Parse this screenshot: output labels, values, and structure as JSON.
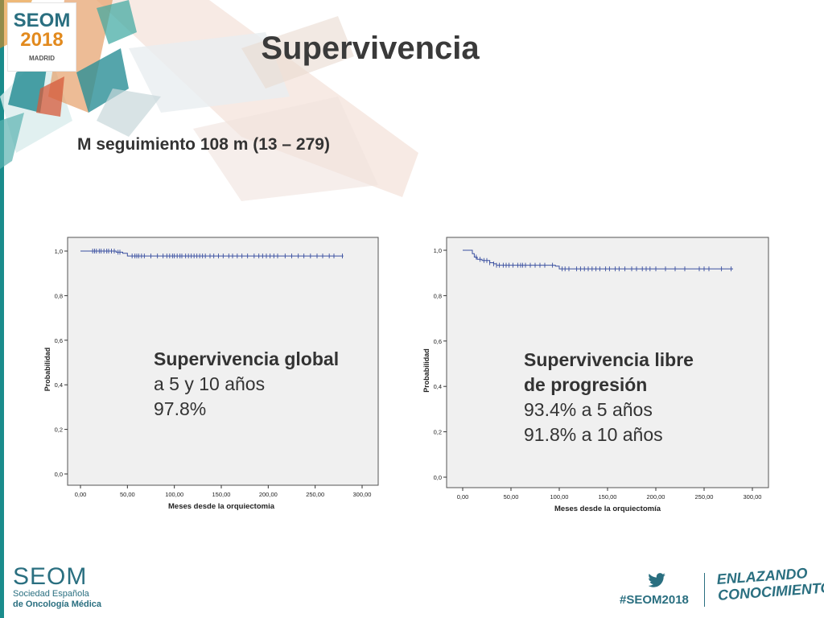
{
  "header": {
    "logo": {
      "line1": "SEOM",
      "line2": "2018",
      "city": "MADRID"
    },
    "title": "Supervivencia",
    "subtitle": "M seguimiento 108 m (13 – 279)"
  },
  "colors": {
    "accent_teal": "#2a6f80",
    "accent_orange": "#e28a1e",
    "curve": "#3a4fa0",
    "plot_bg": "#f0f0f0"
  },
  "chart_data": [
    {
      "type": "line",
      "title": "",
      "xlabel": "Meses desde la orquiectomia",
      "ylabel": "Probabilidad",
      "xlim": [
        0,
        300
      ],
      "ylim": [
        0,
        1
      ],
      "x_ticks": [
        0,
        50,
        100,
        150,
        200,
        250,
        300
      ],
      "x_tick_labels": [
        "0,00",
        "50,00",
        "100,00",
        "150,00",
        "200,00",
        "250,00",
        "300,00"
      ],
      "y_ticks": [
        0,
        0.2,
        0.4,
        0.6,
        0.8,
        1.0
      ],
      "y_tick_labels": [
        "0,0",
        "0,2",
        "0,4",
        "0,6",
        "0,8",
        "1,0"
      ],
      "series": [
        {
          "step_x": [
            0,
            38,
            45,
            50,
            280
          ],
          "step_y": [
            1.0,
            0.995,
            0.99,
            0.978,
            0.978
          ],
          "censor_x": [
            13,
            15,
            17,
            20,
            22,
            25,
            28,
            30,
            33,
            36,
            40,
            42,
            55,
            58,
            60,
            62,
            65,
            68,
            75,
            82,
            88,
            92,
            95,
            98,
            100,
            103,
            106,
            108,
            112,
            115,
            118,
            121,
            124,
            127,
            130,
            133,
            138,
            142,
            147,
            152,
            158,
            162,
            167,
            172,
            178,
            185,
            190,
            194,
            198,
            202,
            206,
            210,
            218,
            225,
            232,
            238,
            245,
            252,
            258,
            265,
            270,
            279
          ],
          "line_start_x": 0
        }
      ],
      "annotation": {
        "heading": "Supervivencia global",
        "line1": "a 5 y 10 años",
        "line2": "97.8%"
      }
    },
    {
      "type": "line",
      "title": "",
      "xlabel": "Meses desde la orquiectomía",
      "ylabel": "Probabilidad",
      "xlim": [
        0,
        300
      ],
      "ylim": [
        0,
        1
      ],
      "x_ticks": [
        0,
        50,
        100,
        150,
        200,
        250,
        300
      ],
      "x_tick_labels": [
        "0,00",
        "50,00",
        "100,00",
        "150,00",
        "200,00",
        "250,00",
        "300,00"
      ],
      "y_ticks": [
        0,
        0.2,
        0.4,
        0.6,
        0.8,
        1.0
      ],
      "y_tick_labels": [
        "0,0",
        "0,2",
        "0,4",
        "0,6",
        "0,8",
        "1,0"
      ],
      "series": [
        {
          "step_x": [
            0,
            10,
            12,
            15,
            20,
            28,
            32,
            35,
            96,
            100,
            280
          ],
          "step_y": [
            1.0,
            0.985,
            0.97,
            0.96,
            0.955,
            0.945,
            0.94,
            0.934,
            0.93,
            0.918,
            0.918
          ],
          "censor_x": [
            14,
            18,
            22,
            25,
            28,
            32,
            35,
            38,
            42,
            45,
            48,
            52,
            57,
            60,
            62,
            65,
            70,
            75,
            80,
            85,
            93,
            103,
            106,
            110,
            118,
            122,
            126,
            130,
            134,
            138,
            142,
            148,
            152,
            158,
            162,
            168,
            175,
            180,
            186,
            190,
            194,
            200,
            210,
            220,
            230,
            245,
            250,
            255,
            268,
            278
          ],
          "line_start_x": 0
        }
      ],
      "annotation": {
        "heading_line1": "Supervivencia libre",
        "heading_line2": "de progresión",
        "line1": "93.4% a 5 años",
        "line2": "91.8% a 10 años"
      }
    }
  ],
  "footer": {
    "org_name": "SEOM",
    "org_line1": "Sociedad Española",
    "org_line2": "de Oncología Médica",
    "hashtag": "#SEOM2018",
    "slogan_line1": "ENLAZANDO",
    "slogan_line2": "CONOCIMIENTO"
  }
}
